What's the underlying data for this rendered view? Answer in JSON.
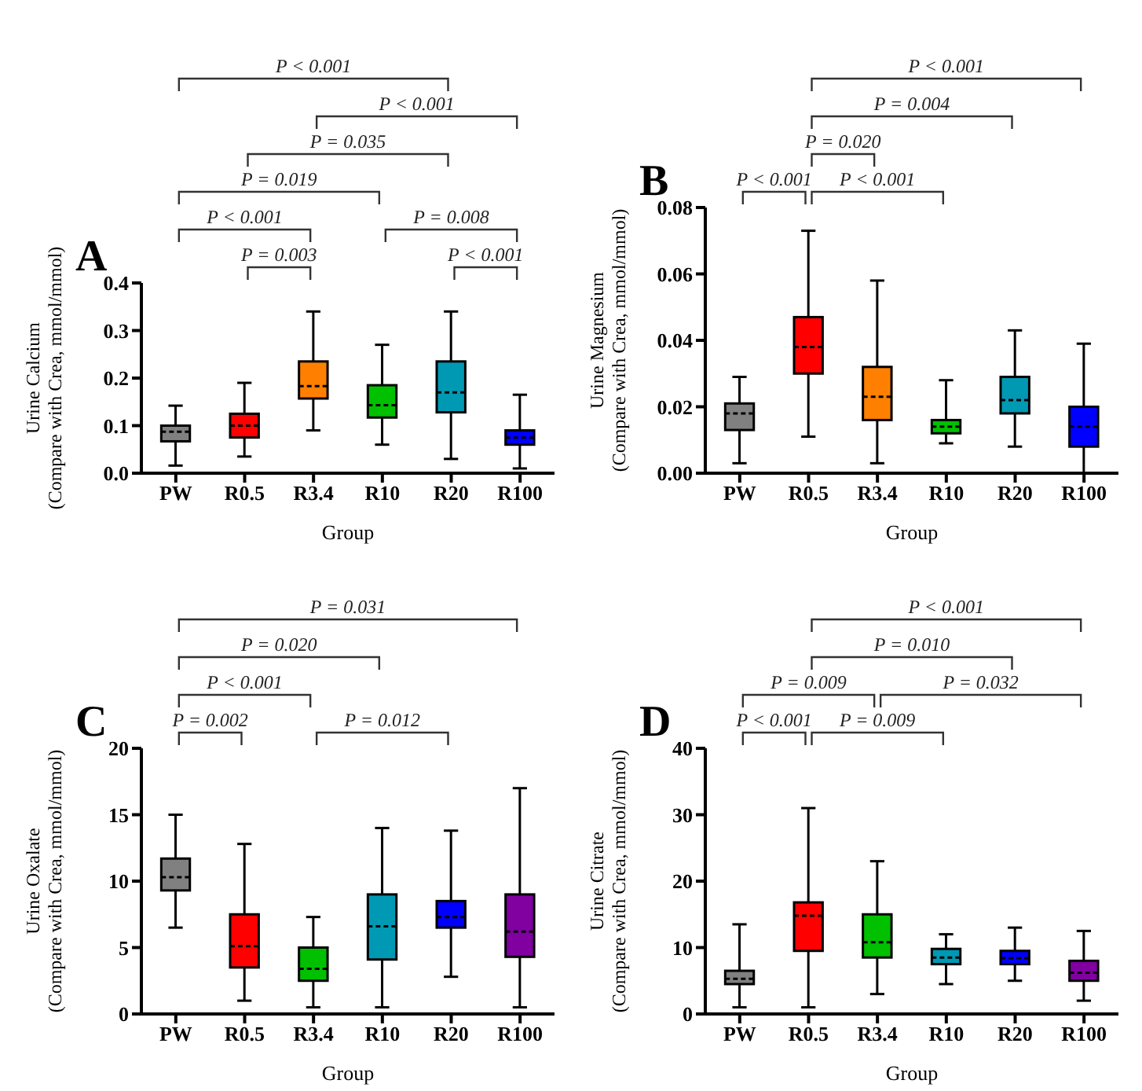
{
  "chart_data": [
    {
      "type": "box",
      "title": "A",
      "xlabel": "Group",
      "ylabel": "Urine Calcium\n(Compare with Crea, mmol/mmol)",
      "categories": [
        "PW",
        "R0.5",
        "R3.4",
        "R10",
        "R20",
        "R100"
      ],
      "colors": [
        "#808080",
        "#ff0000",
        "#ff8000",
        "#00c000",
        "#0099b3",
        "#0000ff"
      ],
      "ylim": [
        0,
        0.4
      ],
      "yticks": [
        {
          "value": 0,
          "label": "0.0"
        },
        0.1,
        0.2,
        0.3,
        0.4
      ],
      "boxes": [
        {
          "low": 0.016,
          "q1": 0.067,
          "median": 0.087,
          "q3": 0.1,
          "high": 0.142
        },
        {
          "low": 0.035,
          "q1": 0.075,
          "median": 0.1,
          "q3": 0.125,
          "high": 0.19
        },
        {
          "low": 0.09,
          "q1": 0.157,
          "median": 0.183,
          "q3": 0.235,
          "high": 0.34
        },
        {
          "low": 0.06,
          "q1": 0.117,
          "median": 0.143,
          "q3": 0.185,
          "high": 0.27
        },
        {
          "low": 0.03,
          "q1": 0.128,
          "median": 0.17,
          "q3": 0.235,
          "high": 0.34
        },
        {
          "low": 0.01,
          "q1": 0.06,
          "median": 0.075,
          "q3": 0.09,
          "high": 0.165
        }
      ],
      "annotations": [
        "P < 0.001",
        "P < 0.001",
        "P = 0.035",
        "P = 0.019",
        "P < 0.001",
        "P = 0.008",
        "P = 0.003",
        "P < 0.001"
      ]
    },
    {
      "type": "box",
      "title": "B",
      "xlabel": "Group",
      "ylabel": "Urine Magnesium\n(Compare with Crea, mmol/mmol)",
      "categories": [
        "PW",
        "R0.5",
        "R3.4",
        "R10",
        "R20",
        "R100"
      ],
      "colors": [
        "#808080",
        "#ff0000",
        "#ff8000",
        "#00c000",
        "#0099b3",
        "#0000ff"
      ],
      "ylim": [
        0,
        0.08
      ],
      "yticks": [
        {
          "value": 0,
          "label": "0.00"
        },
        {
          "value": 0.02,
          "label": "0.02"
        },
        {
          "value": 0.04,
          "label": "0.04"
        },
        {
          "value": 0.06,
          "label": "0.06"
        },
        {
          "value": 0.08,
          "label": "0.08"
        }
      ],
      "boxes": [
        {
          "low": 0.003,
          "q1": 0.013,
          "median": 0.018,
          "q3": 0.021,
          "high": 0.029
        },
        {
          "low": 0.011,
          "q1": 0.03,
          "median": 0.038,
          "q3": 0.047,
          "high": 0.073
        },
        {
          "low": 0.003,
          "q1": 0.016,
          "median": 0.023,
          "q3": 0.032,
          "high": 0.058
        },
        {
          "low": 0.009,
          "q1": 0.012,
          "median": 0.014,
          "q3": 0.016,
          "high": 0.028
        },
        {
          "low": 0.008,
          "q1": 0.018,
          "median": 0.022,
          "q3": 0.029,
          "high": 0.043
        },
        {
          "low": 0.0,
          "q1": 0.008,
          "median": 0.014,
          "q3": 0.02,
          "high": 0.039
        }
      ],
      "annotations": [
        "P < 0.001",
        "P = 0.004",
        "P = 0.020",
        "P < 0.001",
        "P < 0.001"
      ]
    },
    {
      "type": "box",
      "title": "C",
      "xlabel": "Group",
      "ylabel": "Urine Oxalate\n(Compare with Crea, mmol/mmol)",
      "categories": [
        "PW",
        "R0.5",
        "R3.4",
        "R10",
        "R20",
        "R100"
      ],
      "colors": [
        "#808080",
        "#ff0000",
        "#00c000",
        "#0099b3",
        "#0000ff",
        "#8000a0"
      ],
      "ylim": [
        0,
        20
      ],
      "yticks": [
        0,
        5,
        10,
        15,
        20
      ],
      "boxes": [
        {
          "low": 6.5,
          "q1": 9.3,
          "median": 10.3,
          "q3": 11.7,
          "high": 15
        },
        {
          "low": 1,
          "q1": 3.5,
          "median": 5.1,
          "q3": 7.5,
          "high": 12.8
        },
        {
          "low": 0.5,
          "q1": 2.5,
          "median": 3.4,
          "q3": 5,
          "high": 7.3
        },
        {
          "low": 0.5,
          "q1": 4.1,
          "median": 6.6,
          "q3": 9,
          "high": 14
        },
        {
          "low": 2.8,
          "q1": 6.5,
          "median": 7.3,
          "q3": 8.5,
          "high": 13.8
        },
        {
          "low": 0.5,
          "q1": 4.3,
          "median": 6.2,
          "q3": 9,
          "high": 17
        }
      ],
      "annotations": [
        "P = 0.031",
        "P = 0.020",
        "P < 0.001",
        "P = 0.002",
        "P = 0.012"
      ]
    },
    {
      "type": "box",
      "title": "D",
      "xlabel": "Group",
      "ylabel": "Urine Citrate\n(Compare with Crea, mmol/mmol)",
      "categories": [
        "PW",
        "R0.5",
        "R3.4",
        "R10",
        "R20",
        "R100"
      ],
      "colors": [
        "#808080",
        "#ff0000",
        "#00c000",
        "#0099b3",
        "#0000ff",
        "#8000a0"
      ],
      "ylim": [
        0,
        40
      ],
      "yticks": [
        0,
        10,
        20,
        30,
        40
      ],
      "boxes": [
        {
          "low": 1,
          "q1": 4.5,
          "median": 5.3,
          "q3": 6.5,
          "high": 13.5
        },
        {
          "low": 1,
          "q1": 9.5,
          "median": 14.8,
          "q3": 16.8,
          "high": 31
        },
        {
          "low": 3,
          "q1": 8.5,
          "median": 10.8,
          "q3": 15,
          "high": 23
        },
        {
          "low": 4.5,
          "q1": 7.5,
          "median": 8.5,
          "q3": 9.8,
          "high": 12
        },
        {
          "low": 5,
          "q1": 7.5,
          "median": 8.4,
          "q3": 9.5,
          "high": 13
        },
        {
          "low": 2,
          "q1": 5,
          "median": 6.2,
          "q3": 8,
          "high": 12.5
        }
      ],
      "annotations": [
        "P < 0.001",
        "P = 0.010",
        "P = 0.009",
        "P = 0.032",
        "P < 0.001",
        "P = 0.009"
      ]
    }
  ]
}
